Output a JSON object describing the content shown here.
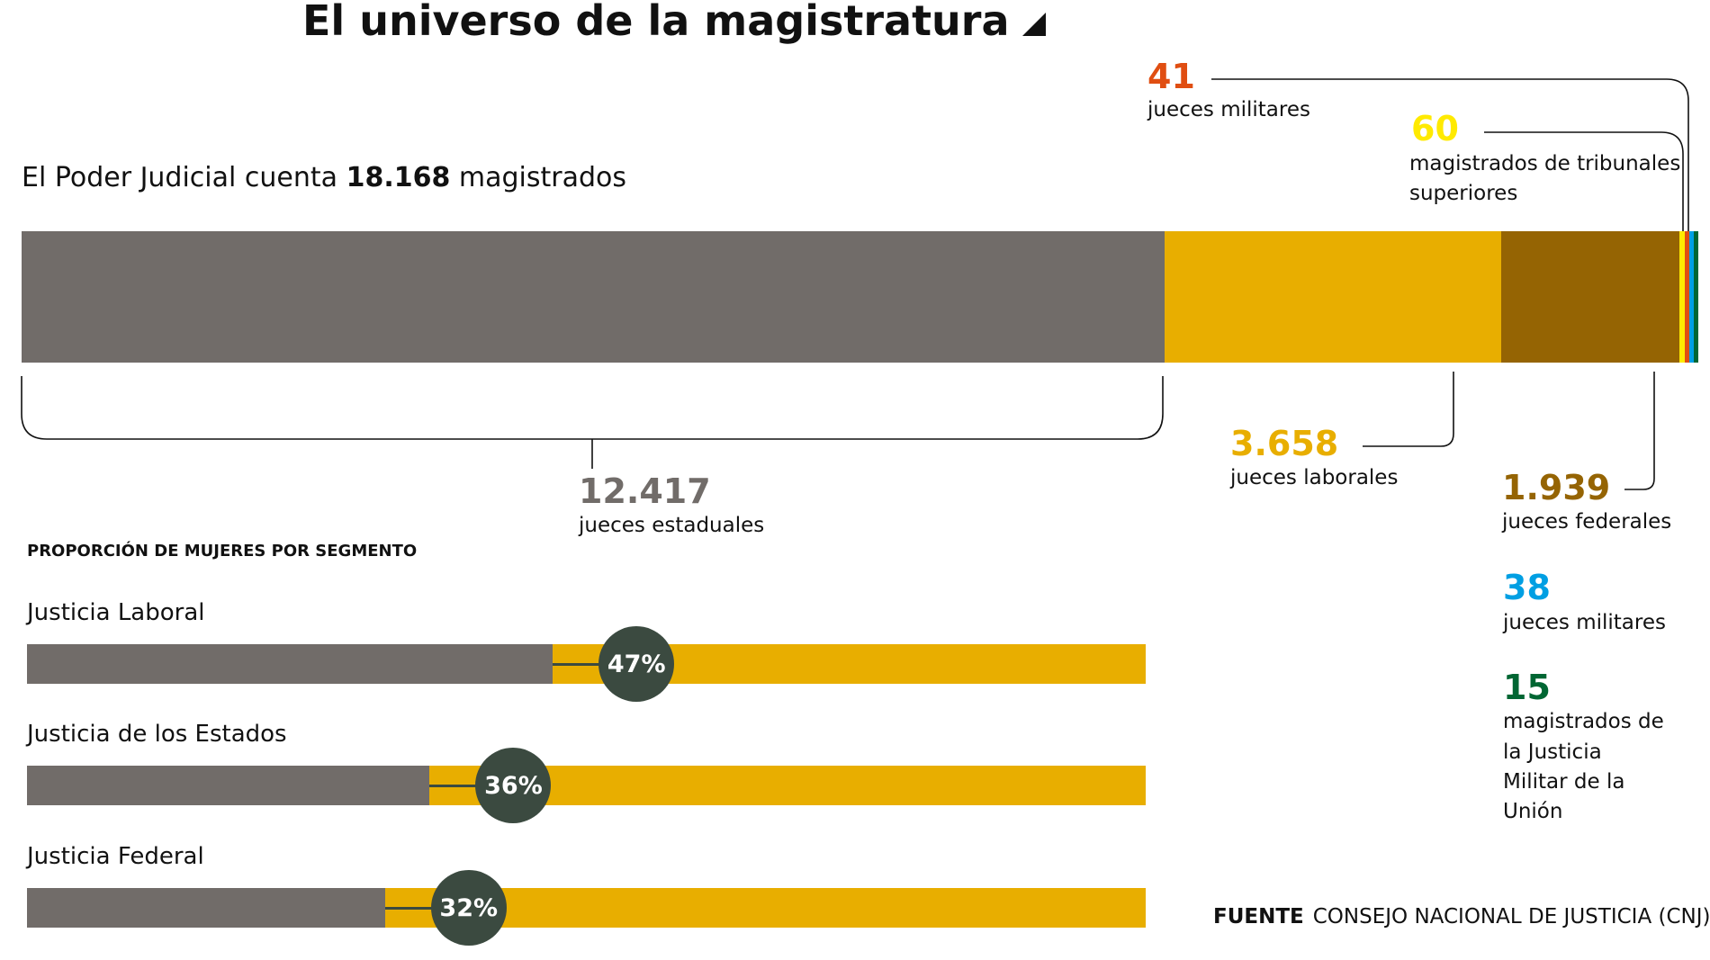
{
  "title": "El universo de la magistratura",
  "intro": {
    "pre": "El Poder Judicial cuenta",
    "total": "18.168",
    "post": "magistrados"
  },
  "chart_data": {
    "type": "bar",
    "stacked": true,
    "title": "El universo de la magistratura",
    "total": 18168,
    "segments": [
      {
        "name": "jueces estaduales",
        "value": 12417,
        "label": "12.417",
        "color": "#716c69"
      },
      {
        "name": "jueces laborales",
        "value": 3658,
        "label": "3.658",
        "color": "#e8ae00"
      },
      {
        "name": "jueces federales",
        "value": 1939,
        "label": "1.939",
        "color": "#956403"
      },
      {
        "name": "magistrados de tribunales superiores",
        "value": 60,
        "label": "60",
        "color": "#ffea00"
      },
      {
        "name": "jueces militares",
        "value": 41,
        "label": "41",
        "color": "#e04e12"
      },
      {
        "name": "jueces militares",
        "value": 38,
        "label": "38",
        "color": "#009fe3"
      },
      {
        "name": "magistrados de la Justicia Militar de la Unión",
        "value": 15,
        "label": "15",
        "color": "#006633"
      }
    ],
    "proportion": {
      "title": "PROPORCIÓN DE MUJERES POR SEGMENTO",
      "rows": [
        {
          "name": "Justicia Laboral",
          "value": 47,
          "label": "47%"
        },
        {
          "name": "Justicia de los Estados",
          "value": 36,
          "label": "36%"
        },
        {
          "name": "Justicia Federal",
          "value": 32,
          "label": "32%"
        }
      ],
      "colors": {
        "women": "#716c69",
        "rest": "#e8ae00",
        "marker": "#3b4a40"
      }
    }
  },
  "labels": {
    "estaduales": {
      "num": "12.417",
      "text": "jueces estaduales"
    },
    "laborales": {
      "num": "3.658",
      "text": "jueces laborales"
    },
    "federales": {
      "num": "1.939",
      "text": "jueces federales"
    },
    "militares41": {
      "num": "41",
      "text": "jueces militares"
    },
    "superiores": {
      "num": "60",
      "line1": "magistrados de tribunales",
      "line2": "superiores"
    },
    "militares38": {
      "num": "38",
      "text": "jueces militares"
    },
    "union": {
      "num": "15",
      "line1": "magistrados de",
      "line2": "la Justicia",
      "line3": "Militar de la",
      "line4": "Unión"
    }
  },
  "source": {
    "label": "FUENTE",
    "text": "CONSEJO NACIONAL DE JUSTICIA (CNJ)"
  }
}
